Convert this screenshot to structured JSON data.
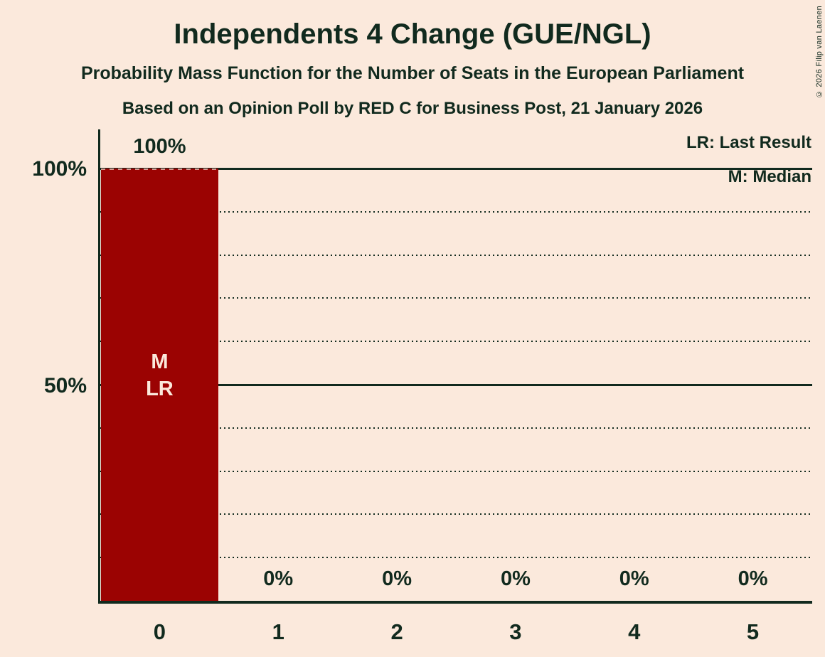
{
  "chart_data": {
    "type": "bar",
    "title": "Independents 4 Change (GUE/NGL)",
    "subtitle": "Probability Mass Function for the Number of Seats in the European Parliament",
    "source_line": "Based on an Opinion Poll by RED C for Business Post, 21 January 2026",
    "copyright": "© 2026 Filip van Laenen",
    "categories": [
      "0",
      "1",
      "2",
      "3",
      "4",
      "5"
    ],
    "values": [
      100,
      0,
      0,
      0,
      0,
      0
    ],
    "value_labels": [
      "100%",
      "0%",
      "0%",
      "0%",
      "0%",
      "0%"
    ],
    "xlabel": "",
    "ylabel": "",
    "ylim": [
      0,
      100
    ],
    "y_ticks": [
      "100%",
      "50%"
    ],
    "y_tick_values": [
      100,
      50
    ],
    "grid": {
      "interval_percent": 10,
      "solid_levels": [
        50,
        100
      ],
      "dotted_levels": [
        10,
        20,
        30,
        40,
        60,
        70,
        80,
        90
      ]
    },
    "legend": [
      "LR: Last Result",
      "M: Median"
    ],
    "legend_position": "top-right",
    "annotations": {
      "category_index": 0,
      "labels": [
        "M",
        "LR"
      ]
    },
    "colors": {
      "background": "#FBE9DC",
      "ink": "#112A1E",
      "bar": "#9B0302",
      "bar_label": "#FBE9DC"
    }
  }
}
